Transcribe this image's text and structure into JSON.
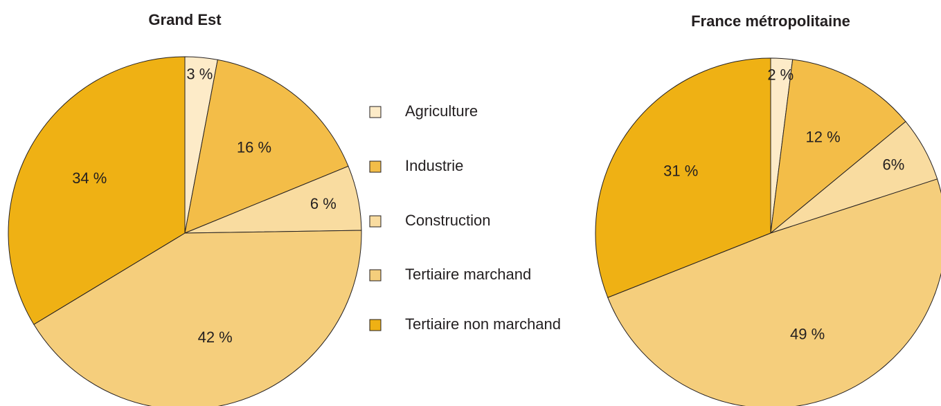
{
  "chart_data": [
    {
      "type": "pie",
      "title": "Grand Est",
      "categories": [
        "Agriculture",
        "Industrie",
        "Construction",
        "Tertiaire marchand",
        "Tertiaire non marchand"
      ],
      "values": [
        3,
        16,
        6,
        42,
        34
      ],
      "value_labels": [
        "3 %",
        "16 %",
        "6 %",
        "42 %",
        "34 %"
      ],
      "colors": [
        "#fdebc8",
        "#f3bd48",
        "#f9dca0",
        "#f5ce7c",
        "#efb114"
      ]
    },
    {
      "type": "pie",
      "title": "France métropolitaine",
      "categories": [
        "Agriculture",
        "Industrie",
        "Construction",
        "Tertiaire marchand",
        "Tertiaire non marchand"
      ],
      "values": [
        2,
        12,
        6,
        49,
        31
      ],
      "value_labels": [
        "2 %",
        "12 %",
        "6%",
        "49 %",
        "31 %"
      ],
      "colors": [
        "#fdebc8",
        "#f3bd48",
        "#f9dca0",
        "#f5ce7c",
        "#efb114"
      ]
    }
  ]
}
